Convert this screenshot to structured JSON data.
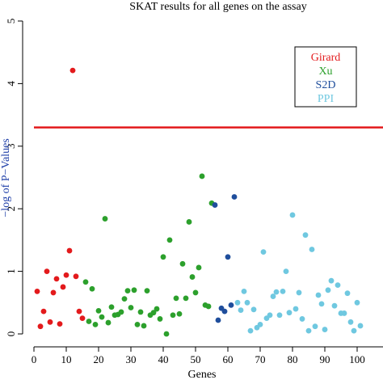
{
  "chart_data": {
    "type": "scatter",
    "title": "SKAT results for all genes on the assay",
    "xlabel": "Genes",
    "ylabel": "−log of P−Values",
    "xlim": [
      0,
      102
    ],
    "ylim": [
      0,
      5
    ],
    "xticks": [
      "0",
      "10",
      "20",
      "30",
      "40",
      "50",
      "60",
      "70",
      "80",
      "90",
      "100"
    ],
    "xtick_values": [
      0,
      10,
      20,
      30,
      40,
      50,
      60,
      70,
      80,
      90,
      100
    ],
    "yticks": [
      "0",
      "1",
      "2",
      "3",
      "4",
      "5"
    ],
    "ytick_values": [
      0,
      1,
      2,
      3,
      4,
      5
    ],
    "threshold": {
      "value": 3.3,
      "color": "#e31a1c"
    },
    "legend_position": "top-right",
    "series": [
      {
        "name": "Girard",
        "color": "#e31a1c",
        "points": [
          [
            1,
            0.68
          ],
          [
            2,
            0.12
          ],
          [
            3,
            0.36
          ],
          [
            4,
            1.0
          ],
          [
            5,
            0.19
          ],
          [
            6,
            0.66
          ],
          [
            7,
            0.88
          ],
          [
            8,
            0.16
          ],
          [
            9,
            0.75
          ],
          [
            10,
            0.94
          ],
          [
            11,
            1.33
          ],
          [
            12,
            4.21
          ],
          [
            13,
            0.92
          ],
          [
            14,
            0.36
          ],
          [
            15,
            0.25
          ]
        ]
      },
      {
        "name": "Xu",
        "color": "#2ca02c",
        "points": [
          [
            16,
            0.83
          ],
          [
            17,
            0.2
          ],
          [
            18,
            0.72
          ],
          [
            19,
            0.15
          ],
          [
            20,
            0.37
          ],
          [
            21,
            0.27
          ],
          [
            22,
            1.84
          ],
          [
            23,
            0.18
          ],
          [
            24,
            0.43
          ],
          [
            25,
            0.3
          ],
          [
            26,
            0.31
          ],
          [
            27,
            0.35
          ],
          [
            28,
            0.56
          ],
          [
            29,
            0.69
          ],
          [
            30,
            0.42
          ],
          [
            31,
            0.7
          ],
          [
            32,
            0.15
          ],
          [
            33,
            0.35
          ],
          [
            34,
            0.13
          ],
          [
            35,
            0.69
          ],
          [
            36,
            0.3
          ],
          [
            37,
            0.34
          ],
          [
            38,
            0.4
          ],
          [
            39,
            0.24
          ],
          [
            40,
            1.23
          ],
          [
            41,
            0.0
          ],
          [
            42,
            1.5
          ],
          [
            43,
            0.3
          ],
          [
            44,
            0.57
          ],
          [
            45,
            0.32
          ],
          [
            46,
            1.12
          ],
          [
            47,
            0.57
          ],
          [
            48,
            1.79
          ],
          [
            49,
            0.91
          ],
          [
            50,
            0.66
          ],
          [
            51,
            1.06
          ],
          [
            52,
            2.52
          ],
          [
            53,
            0.46
          ],
          [
            54,
            0.44
          ],
          [
            55,
            2.09
          ]
        ]
      },
      {
        "name": "S2D",
        "color": "#1f4e9c",
        "points": [
          [
            56,
            2.06
          ],
          [
            57,
            0.22
          ],
          [
            58,
            0.41
          ],
          [
            59,
            0.36
          ],
          [
            60,
            1.23
          ],
          [
            61,
            0.46
          ],
          [
            62,
            2.19
          ]
        ]
      },
      {
        "name": "PPI",
        "color": "#6fc8e0",
        "points": [
          [
            63,
            0.5
          ],
          [
            64,
            0.38
          ],
          [
            65,
            0.68
          ],
          [
            66,
            0.5
          ],
          [
            67,
            0.05
          ],
          [
            68,
            0.39
          ],
          [
            69,
            0.1
          ],
          [
            70,
            0.15
          ],
          [
            71,
            1.31
          ],
          [
            72,
            0.25
          ],
          [
            73,
            0.3
          ],
          [
            74,
            0.6
          ],
          [
            75,
            0.67
          ],
          [
            76,
            0.3
          ],
          [
            77,
            0.68
          ],
          [
            78,
            1.0
          ],
          [
            79,
            0.34
          ],
          [
            80,
            1.9
          ],
          [
            81,
            0.4
          ],
          [
            82,
            0.66
          ],
          [
            83,
            0.24
          ],
          [
            84,
            1.58
          ],
          [
            85,
            0.05
          ],
          [
            86,
            1.35
          ],
          [
            87,
            0.12
          ],
          [
            88,
            0.62
          ],
          [
            89,
            0.48
          ],
          [
            90,
            0.07
          ],
          [
            91,
            0.7
          ],
          [
            92,
            0.85
          ],
          [
            93,
            0.45
          ],
          [
            94,
            0.78
          ],
          [
            95,
            0.33
          ],
          [
            96,
            0.33
          ],
          [
            97,
            0.65
          ],
          [
            98,
            0.19
          ],
          [
            99,
            0.05
          ],
          [
            100,
            0.5
          ],
          [
            101,
            0.13
          ]
        ]
      }
    ]
  }
}
